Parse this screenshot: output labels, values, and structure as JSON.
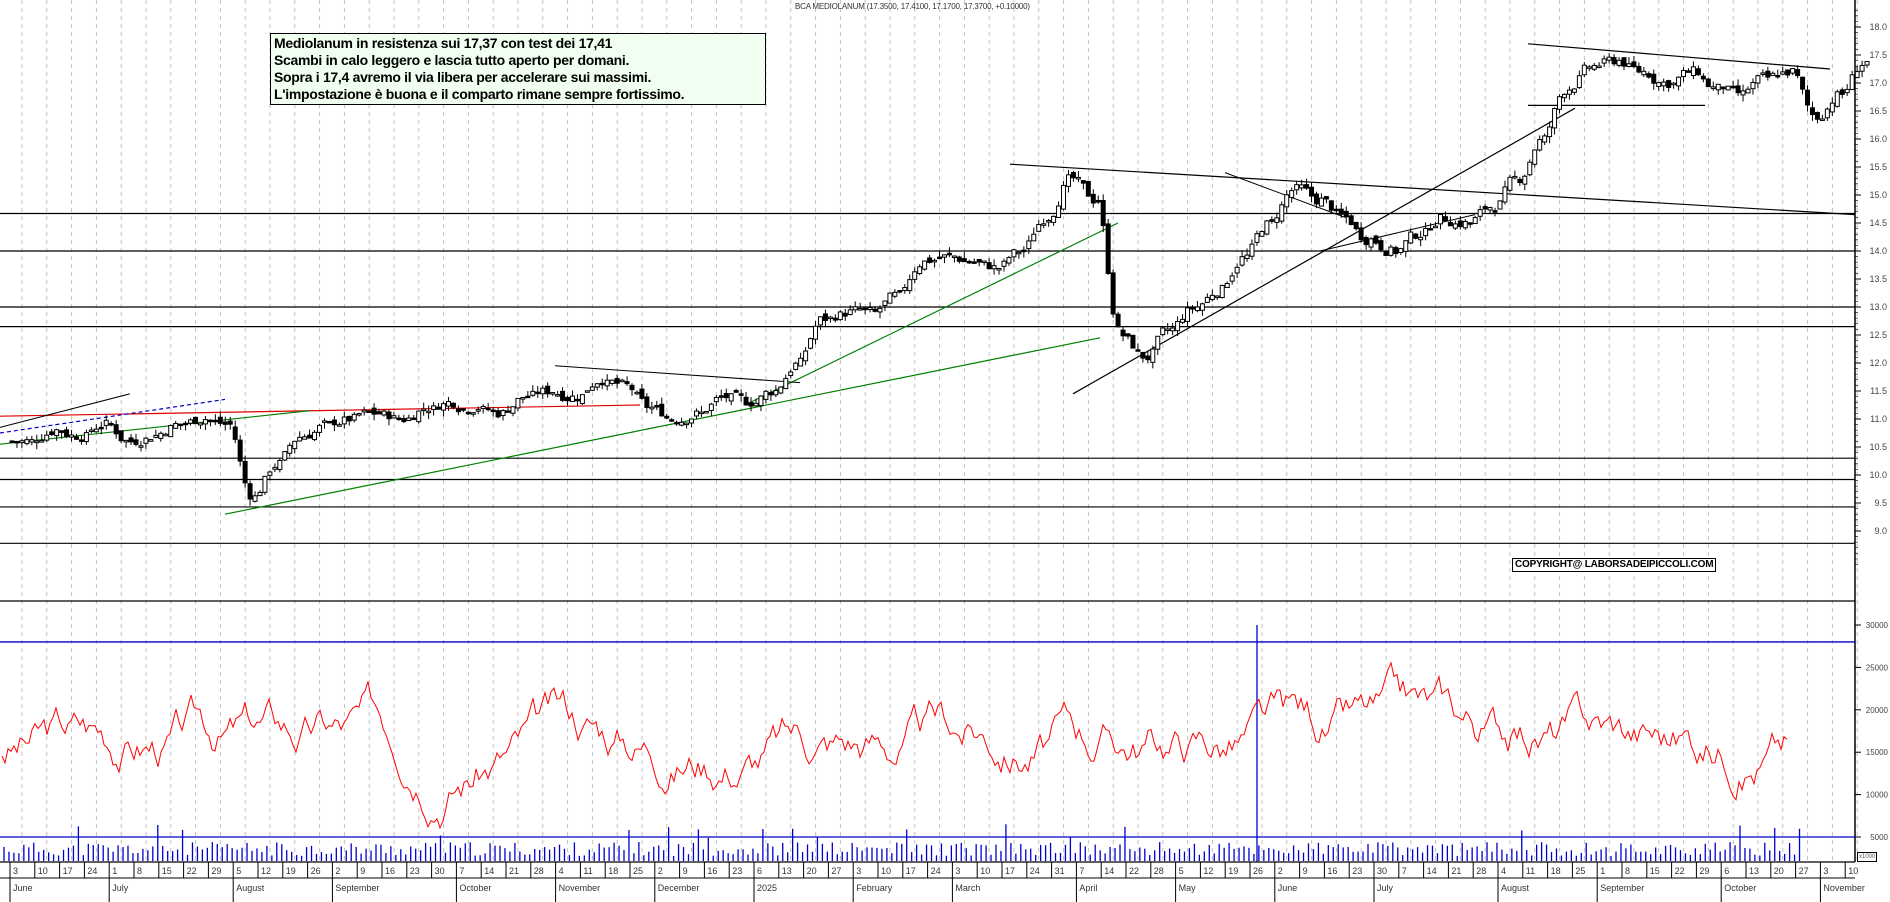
{
  "header": {
    "title": "BCA MEDIOLANUM (17.3500, 17.4100, 17.1700, 17.3700, +0.10000)"
  },
  "annotation": {
    "lines": [
      "Mediolanum in resistenza sui 17,37 con test dei 17,41",
      "Scambi in calo leggero e lascia tutto aperto per domani.",
      "Sopra i 17,4 avremo il via libera per accelerare sui massimi.",
      "L'impostazione è buona e il comparto rimane sempre fortissimo."
    ]
  },
  "copyright": "COPYRIGHT@ LABORSADEIPICCOLI.COM",
  "volume_unit": "x1000",
  "colors": {
    "price_bar": "#000000",
    "resistance_red": "#e00000",
    "trend_green": "#008000",
    "trend_blue_dashed": "#0000cc",
    "oscillator": "#ff0000",
    "osc_levels": "#0000cc",
    "volume": "#0000cc",
    "grid": "#c0c0c0"
  },
  "chart_data": {
    "type": "candlestick",
    "title": "BCA MEDIOLANUM (17.3500, 17.4100, 17.1700, 17.3700, +0.10000)",
    "last_bar": {
      "open": 17.35,
      "high": 17.41,
      "low": 17.17,
      "close": 17.37,
      "change": 0.1
    },
    "price_axis": {
      "ticks": [
        9.0,
        9.5,
        10.0,
        10.5,
        11.0,
        11.5,
        12.0,
        12.5,
        13.0,
        13.5,
        14.0,
        14.5,
        15.0,
        15.5,
        16.0,
        16.5,
        17.0,
        17.5,
        18.0
      ],
      "range": [
        8.3,
        18.5
      ]
    },
    "oscillator_axis": {
      "ticks": [
        5000,
        10000,
        15000,
        20000,
        25000,
        30000
      ],
      "levels": [
        5000,
        28000
      ]
    },
    "date_axis": {
      "day_ticks": [
        "3",
        "10",
        "17",
        "24",
        "1",
        "8",
        "15",
        "22",
        "29",
        "5",
        "12",
        "19",
        "26",
        "2",
        "9",
        "16",
        "23",
        "30",
        "7",
        "14",
        "21",
        "28",
        "4",
        "11",
        "18",
        "25",
        "2",
        "9",
        "16",
        "23",
        "6",
        "13",
        "20",
        "27",
        "3",
        "10",
        "17",
        "24",
        "3",
        "10",
        "17",
        "24",
        "31",
        "7",
        "14",
        "22",
        "28",
        "5",
        "12",
        "19",
        "26",
        "2",
        "9",
        "16",
        "23",
        "30",
        "7",
        "14",
        "21",
        "28",
        "4",
        "11",
        "18",
        "25",
        "1",
        "8",
        "15",
        "22",
        "29",
        "6",
        "13",
        "20",
        "27",
        "3",
        "10"
      ],
      "month_labels": [
        "June",
        "July",
        "August",
        "September",
        "October",
        "November",
        "December",
        "2025",
        "February",
        "March",
        "April",
        "May",
        "June",
        "July",
        "August",
        "September",
        "October",
        "November"
      ]
    },
    "horizontal_levels": [
      14.67,
      14.0,
      13.0,
      12.65,
      10.3,
      9.92,
      9.43,
      8.78
    ],
    "weekly_closes_approx": [
      10.6,
      10.8,
      10.7,
      10.9,
      10.6,
      10.7,
      10.9,
      11.0,
      10.9,
      9.6,
      10.2,
      10.7,
      10.9,
      11.0,
      11.1,
      11.0,
      11.2,
      11.3,
      11.2,
      11.1,
      11.4,
      11.5,
      11.4,
      11.7,
      11.6,
      11.2,
      11.0,
      11.1,
      11.4,
      11.3,
      11.5,
      12.0,
      12.8,
      12.9,
      12.9,
      13.2,
      13.8,
      13.9,
      13.8,
      13.7,
      14.0,
      14.6,
      15.3,
      14.9,
      12.5,
      12.1,
      12.6,
      13.0,
      13.3,
      13.9,
      14.5,
      15.1,
      14.9,
      14.6,
      14.2,
      14.0,
      14.3,
      14.6,
      14.5,
      14.8,
      15.3,
      16.0,
      16.9,
      17.3,
      17.4,
      17.2,
      17.0,
      17.2,
      16.9,
      16.8,
      17.1,
      17.2,
      16.4,
      16.8,
      17.37
    ]
  }
}
